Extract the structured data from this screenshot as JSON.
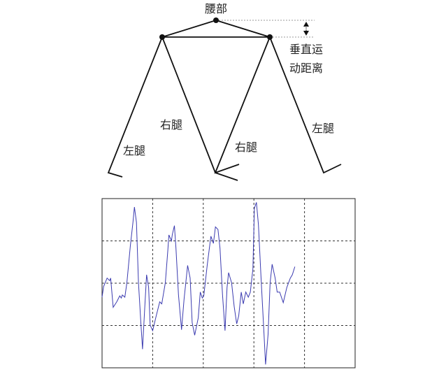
{
  "diagram": {
    "waist_label": "腰部",
    "vertical_distance_label_line1": "垂直运",
    "vertical_distance_label_line2": "动距离",
    "left_leg_label_1": "左腿",
    "right_leg_label_1": "右腿",
    "right_leg_label_2": "右腿",
    "left_leg_label_2": "左腿"
  },
  "chart_data": {
    "type": "line",
    "title": "",
    "xlabel": "",
    "ylabel": "",
    "xlim": [
      0,
      5
    ],
    "ylim": [
      -2,
      2
    ],
    "grid": true,
    "grid_style": "dashed",
    "line_color": "#3b3bb0",
    "x": [
      0,
      0.03,
      0.1,
      0.15,
      0.17,
      0.22,
      0.29,
      0.35,
      0.38,
      0.4,
      0.45,
      0.49,
      0.56,
      0.61,
      0.64,
      0.68,
      0.72,
      0.77,
      0.8,
      0.84,
      0.88,
      0.92,
      0.95,
      1.0,
      1.07,
      1.14,
      1.18,
      1.25,
      1.3,
      1.32,
      1.37,
      1.39,
      1.43,
      1.46,
      1.51,
      1.57,
      1.62,
      1.69,
      1.74,
      1.78,
      1.83,
      1.9,
      1.94,
      1.98,
      2.01,
      2.08,
      2.15,
      2.2,
      2.24,
      2.29,
      2.33,
      2.38,
      2.43,
      2.47,
      2.5,
      2.56,
      2.61,
      2.66,
      2.7,
      2.75,
      2.79,
      2.84,
      2.89,
      2.93,
      2.98,
      3.01,
      3.05,
      3.09,
      3.14,
      3.2,
      3.23,
      3.28,
      3.32,
      3.36,
      3.42,
      3.46,
      3.51,
      3.58,
      3.65,
      3.72,
      3.76,
      3.81
    ],
    "y": [
      -0.33,
      -0.08,
      0.12,
      0.06,
      0.12,
      -0.57,
      -0.44,
      -0.3,
      -0.35,
      -0.28,
      -0.33,
      0.01,
      0.89,
      1.44,
      1.8,
      1.44,
      0.01,
      -0.99,
      -1.56,
      -0.66,
      0.2,
      -0.1,
      -0.99,
      -1.12,
      -0.77,
      -0.44,
      -0.49,
      0.01,
      0.78,
      1.14,
      1.0,
      1.16,
      1.36,
      0.83,
      -0.27,
      -1.1,
      -0.38,
      0.42,
      0.12,
      -0.93,
      -1.23,
      -0.82,
      -0.21,
      -0.35,
      -0.3,
      0.45,
      1.11,
      0.94,
      1.33,
      1.27,
      0.83,
      -0.27,
      -1.12,
      -0.1,
      0.25,
      0.01,
      -0.55,
      -0.96,
      -0.77,
      -0.21,
      -0.49,
      -0.21,
      -0.33,
      -0.21,
      0.34,
      1.77,
      1.91,
      1.38,
      0.17,
      -1.21,
      -1.92,
      -1.21,
      0.01,
      0.45,
      0.12,
      -0.21,
      -0.21,
      -0.46,
      -0.1,
      0.12,
      0.2,
      0.39
    ]
  }
}
